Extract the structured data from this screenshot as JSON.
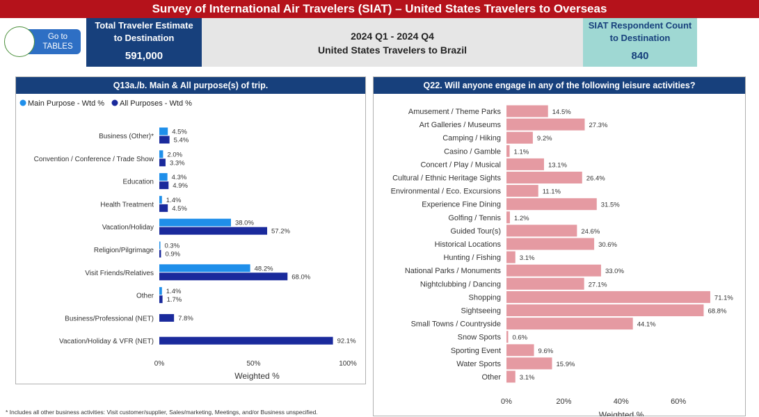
{
  "header": {
    "title": "Survey of International Air Travelers (SIAT)  – United States Travelers  to Overseas"
  },
  "goto_button": {
    "label_line1": "Go to",
    "label_line2": "TABLES"
  },
  "kpi_left": {
    "title_line1": "Total Traveler Estimate",
    "title_line2": "to Destination",
    "value": "591,000"
  },
  "center": {
    "period": "2024 Q1 - 2024 Q4",
    "subtitle": "United States Travelers to Brazil"
  },
  "kpi_right": {
    "title_line1": "SIAT Respondent Count",
    "title_line2": "to Destination",
    "value": "840"
  },
  "colors": {
    "main_purpose": "#1f8fea",
    "all_purposes": "#1a2a9c",
    "leisure": "#e59aa2",
    "panel_header": "#17407c",
    "banner": "#b5121b"
  },
  "chart_data": [
    {
      "type": "bar",
      "orientation": "horizontal",
      "title": "Q13a./b. Main & All purpose(s) of trip.",
      "legend": [
        "Main Purpose - Wtd %",
        "All Purposes - Wtd %"
      ],
      "categories": [
        "Business (Other)*",
        "Convention / Conference / Trade Show",
        "Education",
        "Health Treatment",
        "Vacation/Holiday",
        "Religion/Pilgrimage",
        "Visit Friends/Relatives",
        "Other",
        "Business/Professional (NET)",
        "Vacation/Holiday & VFR (NET)"
      ],
      "series": [
        {
          "name": "Main Purpose - Wtd %",
          "values": [
            4.5,
            2.0,
            4.3,
            1.4,
            38.0,
            0.3,
            48.2,
            1.4,
            null,
            null
          ]
        },
        {
          "name": "All Purposes - Wtd %",
          "values": [
            5.4,
            3.3,
            4.9,
            4.5,
            57.2,
            0.9,
            68.0,
            1.7,
            7.8,
            92.1
          ]
        }
      ],
      "xlim": [
        0,
        100
      ],
      "xticks": [
        "0%",
        "50%",
        "100%"
      ],
      "xlabel": "Weighted %"
    },
    {
      "type": "bar",
      "orientation": "horizontal",
      "title": "Q22. Will anyone engage in any of the following leisure activities?",
      "categories": [
        "Amusement / Theme Parks",
        "Art Galleries / Museums",
        "Camping / Hiking",
        "Casino / Gamble",
        "Concert / Play / Musical",
        "Cultural / Ethnic Heritage Sights",
        "Environmental / Eco. Excursions",
        "Experience Fine Dining",
        "Golfing / Tennis",
        "Guided Tour(s)",
        "Historical Locations",
        "Hunting / Fishing",
        "National Parks / Monuments",
        "Nightclubbing / Dancing",
        "Shopping",
        "Sightseeing",
        "Small Towns / Countryside",
        "Snow Sports",
        "Sporting Event",
        "Water Sports",
        "Other"
      ],
      "values": [
        14.5,
        27.3,
        9.2,
        1.1,
        13.1,
        26.4,
        11.1,
        31.5,
        1.2,
        24.6,
        30.6,
        3.1,
        33.0,
        27.1,
        71.1,
        68.8,
        44.1,
        0.6,
        9.6,
        15.9,
        3.1
      ],
      "xlim": [
        0,
        72
      ],
      "xticks": [
        "0%",
        "20%",
        "40%",
        "60%"
      ],
      "xlabel": "Weighted %"
    }
  ],
  "footnote": "* Includes all other business activities: Visit customer/supplier, Sales/marketing, Meetings, and/or Business unspecified."
}
